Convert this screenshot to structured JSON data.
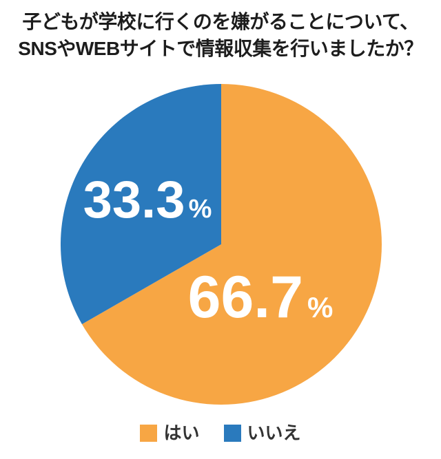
{
  "title": {
    "line1": "子どもが学校に行くのを嫌がることについて、",
    "line2": "SNSやWEBサイトで情報収集を行いましたか？"
  },
  "chart_data": {
    "type": "pie",
    "title": "子どもが学校に行くのを嫌がることについて、SNSやWEBサイトで情報収集を行いましたか？",
    "start_angle_deg": 0,
    "direction": "clockwise",
    "legend_position": "bottom",
    "background_color": "#FFFFFF",
    "label_text_color": "#FFFFFF",
    "slices": [
      {
        "label": "はい",
        "value": 66.7,
        "display": "66.7",
        "unit": "%",
        "color": "#F7A644"
      },
      {
        "label": "いいえ",
        "value": 33.3,
        "display": "33.3",
        "unit": "%",
        "color": "#2A7ABD"
      }
    ]
  },
  "legend": {
    "items": [
      {
        "label": "はい",
        "color": "#F7A644"
      },
      {
        "label": "いいえ",
        "color": "#2A7ABD"
      }
    ]
  }
}
